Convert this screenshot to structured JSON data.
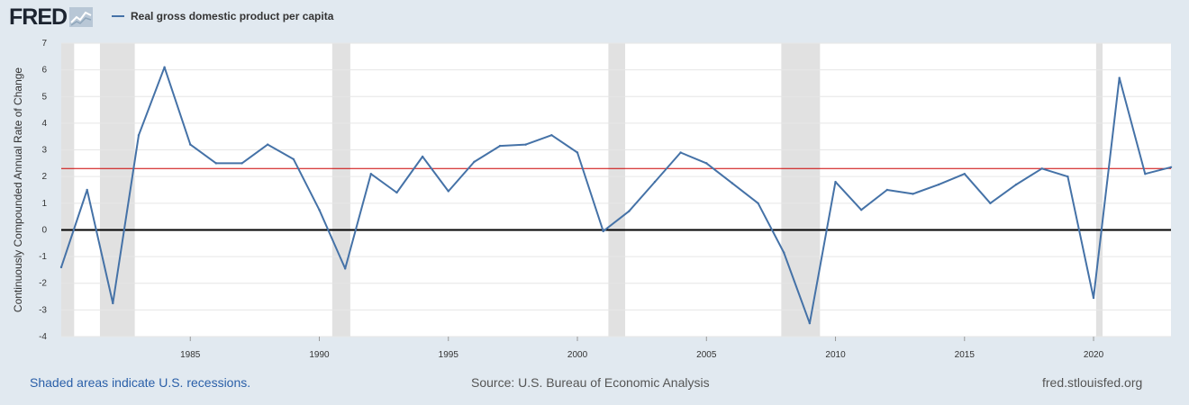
{
  "logo": {
    "text": "FRED",
    "icon": "fred-chart-icon"
  },
  "legend": {
    "label": "Real gross domestic product per capita",
    "color": "#4572a7"
  },
  "footer": {
    "left": "Shaded areas indicate U.S. recessions.",
    "middle": "Source: U.S. Bureau of Economic Analysis",
    "right": "fred.stlouisfed.org"
  },
  "colors": {
    "series": "#4572a7",
    "recession": "#e1e1e1",
    "reference_line": "#cc0000",
    "zero_line": "#000000",
    "page_bg": "#e1e9f0"
  },
  "chart_data": {
    "type": "line",
    "ylabel": "Continuously Compounded Annual Rate of Change",
    "xlabel": "",
    "xlim": [
      1980,
      2023
    ],
    "ylim": [
      -4,
      7
    ],
    "yticks": [
      -4,
      -3,
      -2,
      -1,
      0,
      1,
      2,
      3,
      4,
      5,
      6,
      7
    ],
    "xticks": [
      1985,
      1990,
      1995,
      2000,
      2005,
      2010,
      2015,
      2020
    ],
    "grid": true,
    "zero_line": 0,
    "reference_line": 2.3,
    "recessions": [
      [
        1980.0,
        1980.5
      ],
      [
        1981.5,
        1982.85
      ],
      [
        1990.5,
        1991.2
      ],
      [
        2001.2,
        2001.85
      ],
      [
        2007.9,
        2009.4
      ],
      [
        2020.1,
        2020.35
      ]
    ],
    "series": [
      {
        "name": "Real gross domestic product per capita",
        "x": [
          1980,
          1981,
          1982,
          1983,
          1984,
          1985,
          1986,
          1987,
          1988,
          1989,
          1990,
          1991,
          1992,
          1993,
          1994,
          1995,
          1996,
          1997,
          1998,
          1999,
          2000,
          2001,
          2002,
          2003,
          2004,
          2005,
          2006,
          2007,
          2008,
          2009,
          2010,
          2011,
          2012,
          2013,
          2014,
          2015,
          2016,
          2017,
          2018,
          2019,
          2020,
          2021,
          2022,
          2023
        ],
        "values": [
          -1.4,
          1.5,
          -2.75,
          3.55,
          6.1,
          3.2,
          2.5,
          2.5,
          3.2,
          2.65,
          0.75,
          -1.45,
          2.1,
          1.4,
          2.75,
          1.45,
          2.55,
          3.15,
          3.2,
          3.55,
          2.9,
          -0.05,
          0.7,
          1.8,
          2.9,
          2.5,
          1.75,
          1.0,
          -0.85,
          -3.5,
          1.8,
          0.75,
          1.5,
          1.35,
          1.7,
          2.1,
          1.0,
          1.7,
          2.3,
          2.0,
          -2.55,
          5.7,
          2.1,
          2.35
        ]
      }
    ]
  }
}
